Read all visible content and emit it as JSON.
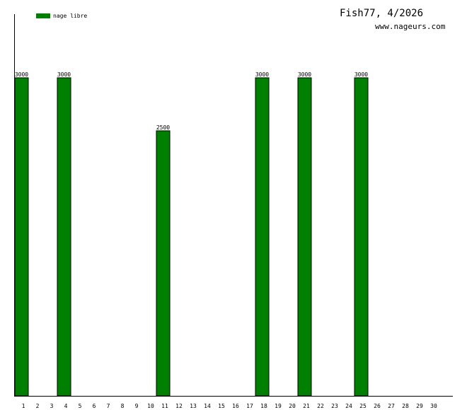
{
  "header": {
    "title": "Fish77, 4/2026",
    "site": "www.nageurs.com"
  },
  "colors": {
    "bar_fill": "#008000",
    "bar_stroke": "#000000"
  },
  "chart_data": {
    "type": "bar",
    "categories": [
      "1",
      "2",
      "3",
      "4",
      "5",
      "6",
      "7",
      "8",
      "9",
      "10",
      "11",
      "12",
      "13",
      "14",
      "15",
      "16",
      "17",
      "18",
      "19",
      "20",
      "21",
      "22",
      "23",
      "24",
      "25",
      "26",
      "27",
      "28",
      "29",
      "30"
    ],
    "series": [
      {
        "name": "nage libre",
        "values": [
          3000,
          0,
          0,
          3000,
          0,
          0,
          0,
          0,
          0,
          0,
          2500,
          0,
          0,
          0,
          0,
          0,
          0,
          3000,
          0,
          0,
          3000,
          0,
          0,
          0,
          3000,
          0,
          0,
          0,
          0,
          0
        ]
      }
    ],
    "data_labels": [
      "3000",
      "",
      "",
      "3000",
      "",
      "",
      "",
      "",
      "",
      "",
      "2500",
      "",
      "",
      "",
      "",
      "",
      "",
      "3000",
      "",
      "",
      "3000",
      "",
      "",
      "",
      "3000",
      "",
      "",
      "",
      "",
      ""
    ],
    "ylim": [
      0,
      3600
    ],
    "legend": "top-left",
    "grid": false
  }
}
